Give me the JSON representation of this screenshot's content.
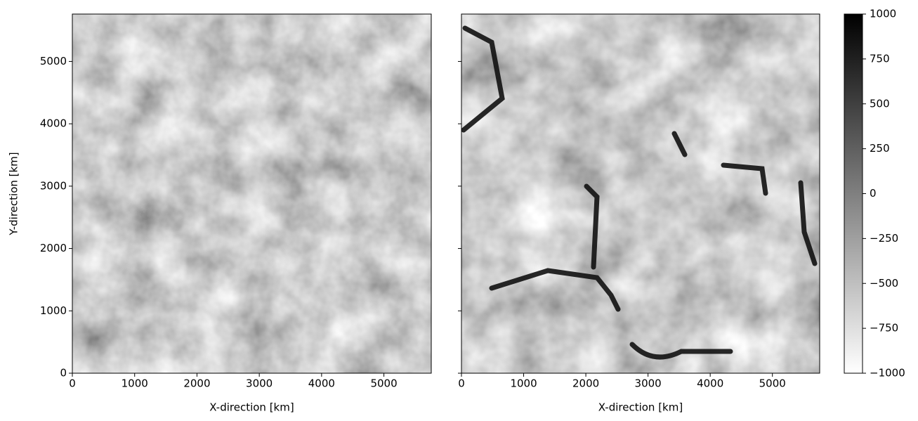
{
  "chart_data": [
    {
      "type": "heatmap",
      "xlabel": "X-direction [km]",
      "ylabel": "Y-direction [km]",
      "xlim": [
        0,
        5760
      ],
      "ylim": [
        0,
        5760
      ],
      "xticks": [
        0,
        1000,
        2000,
        3000,
        4000,
        5000
      ],
      "yticks": [
        0,
        1000,
        2000,
        3000,
        4000,
        5000
      ],
      "show_ytick_labels": true
    },
    {
      "type": "heatmap",
      "xlabel": "X-direction [km]",
      "xlim": [
        0,
        5760
      ],
      "ylim": [
        0,
        5760
      ],
      "xticks": [
        0,
        1000,
        2000,
        3000,
        4000,
        5000
      ],
      "yticks": [
        0,
        1000,
        2000,
        3000,
        4000,
        5000
      ],
      "show_ytick_labels": false,
      "colorbar": {
        "lim": [
          -1000,
          1000
        ],
        "colors": [
          "#ffffff",
          "#000000"
        ],
        "ticks": [
          {
            "value": -1000,
            "label": "−1000"
          },
          {
            "value": -750,
            "label": "−750"
          },
          {
            "value": -500,
            "label": "−500"
          },
          {
            "value": -250,
            "label": "−250"
          },
          0,
          250,
          500,
          750,
          1000
        ]
      }
    }
  ]
}
